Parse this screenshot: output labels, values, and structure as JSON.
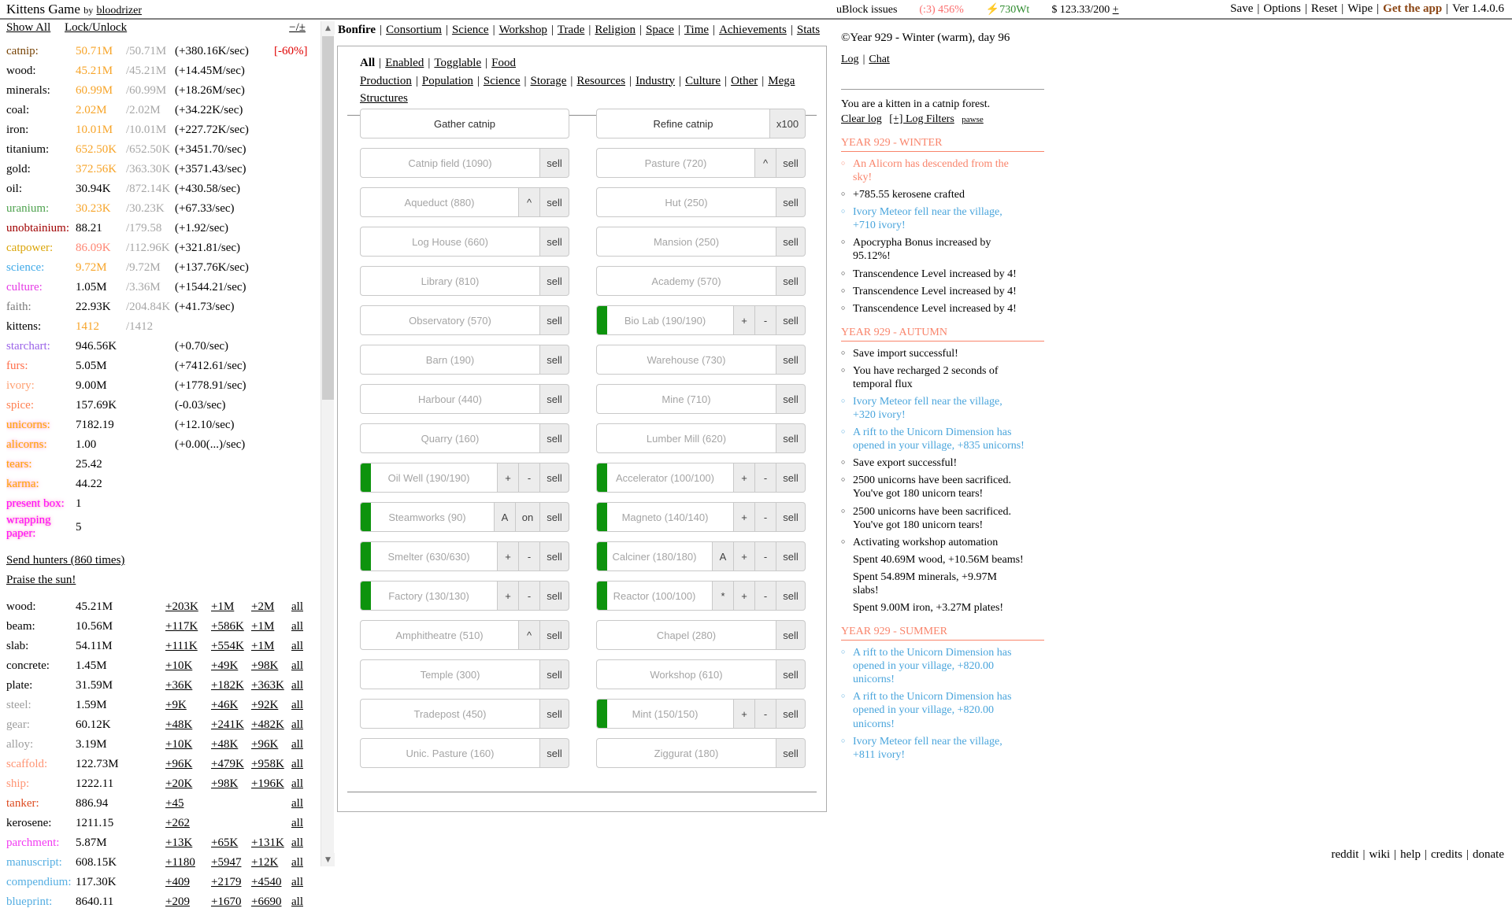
{
  "topbar": {
    "title": "Kittens Game",
    "by": "by",
    "author": "bloodrizer",
    "ublock": "uBlock issues",
    "happiness": "(:3) 456%",
    "energy": "⚡730Wt",
    "money": "$ 123.33/200",
    "money_plus": "+",
    "menu": [
      {
        "label": "Save"
      },
      {
        "label": "Options"
      },
      {
        "label": "Reset"
      },
      {
        "label": "Wipe"
      },
      {
        "label": "Get the app",
        "accent": true
      },
      {
        "label": "Ver 1.4.0.6"
      }
    ]
  },
  "colors": {
    "capped_value": "#F7A428",
    "max_gray": "#A6A6A6",
    "limited_value": "#FF8673",
    "penalty_red": "#E00000",
    "active_green": "#0D930D",
    "log_blue": "#4AA5DC",
    "log_salmon": "#F9846B",
    "app_accent": "#8B4513"
  },
  "left": {
    "show_all": "Show All",
    "lock_unlock": "Lock/Unlock",
    "collapse": "−/±",
    "resources": [
      {
        "name": "catnip:",
        "color": "#764204",
        "value": "50.71M",
        "value_color": "#F7A428",
        "max": "/50.71M",
        "rate": "(+380.16K/sec)",
        "mod": "[-60%]"
      },
      {
        "name": "wood:",
        "color": "#000000",
        "value": "45.21M",
        "value_color": "#F7A428",
        "max": "/45.21M",
        "rate": "(+14.45M/sec)",
        "mod": ""
      },
      {
        "name": "minerals:",
        "color": "#000000",
        "value": "60.99M",
        "value_color": "#F7A428",
        "max": "/60.99M",
        "rate": "(+18.26M/sec)",
        "mod": ""
      },
      {
        "name": "coal:",
        "color": "#000000",
        "value": "2.02M",
        "value_color": "#F7A428",
        "max": "/2.02M",
        "rate": "(+34.22K/sec)",
        "mod": ""
      },
      {
        "name": "iron:",
        "color": "#000000",
        "value": "10.01M",
        "value_color": "#F7A428",
        "max": "/10.01M",
        "rate": "(+227.72K/sec)",
        "mod": ""
      },
      {
        "name": "titanium:",
        "color": "#000000",
        "value": "652.50K",
        "value_color": "#F7A428",
        "max": "/652.50K",
        "rate": "(+3451.70/sec)",
        "mod": ""
      },
      {
        "name": "gold:",
        "color": "#000000",
        "value": "372.56K",
        "value_color": "#F7A428",
        "max": "/363.30K",
        "rate": "(+3571.43/sec)",
        "mod": ""
      },
      {
        "name": "oil:",
        "color": "#000000",
        "value": "30.94K",
        "value_color": "#000000",
        "max": "/872.14K",
        "rate": "(+430.58/sec)",
        "mod": ""
      },
      {
        "name": "uranium:",
        "color": "#4EA24E",
        "value": "30.23K",
        "value_color": "#F7A428",
        "max": "/30.23K",
        "rate": "(+67.33/sec)",
        "mod": ""
      },
      {
        "name": "unobtainium:",
        "color": "#A00000",
        "value": "88.21",
        "value_color": "#000000",
        "max": "/179.58",
        "rate": "(+1.92/sec)",
        "mod": ""
      },
      {
        "name": "catpower:",
        "color": "#DBA509",
        "value": "86.09K",
        "value_color": "#FF8673",
        "max": "/112.96K",
        "rate": "(+321.81/sec)",
        "mod": ""
      },
      {
        "name": "science:",
        "color": "#3FA9E8",
        "value": "9.72M",
        "value_color": "#F7A428",
        "max": "/9.72M",
        "rate": "(+137.76K/sec)",
        "mod": ""
      },
      {
        "name": "culture:",
        "color": "#E53BE5",
        "value": "1.05M",
        "value_color": "#000000",
        "max": "/3.36M",
        "rate": "(+1544.21/sec)",
        "mod": ""
      },
      {
        "name": "faith:",
        "color": "#7A7A7A",
        "value": "22.93K",
        "value_color": "#000000",
        "max": "/204.84K",
        "rate": "(+41.73/sec)",
        "mod": ""
      },
      {
        "name": "kittens:",
        "color": "#000000",
        "value": "1412",
        "value_color": "#F7A428",
        "max": "/1412",
        "rate": "",
        "mod": ""
      },
      {
        "name": "starchart:",
        "color": "#9A62E8",
        "value": "946.56K",
        "value_color": "#000000",
        "max": "",
        "rate": "(+0.70/sec)",
        "mod": ""
      },
      {
        "name": "furs:",
        "color": "#FF6E4A",
        "value": "5.05M",
        "value_color": "#000000",
        "max": "",
        "rate": "(+7412.61/sec)",
        "mod": ""
      },
      {
        "name": "ivory:",
        "color": "#FF9F71",
        "value": "9.00M",
        "value_color": "#000000",
        "max": "",
        "rate": "(+1778.91/sec)",
        "mod": ""
      },
      {
        "name": "spice:",
        "color": "#FF7F50",
        "value": "157.69K",
        "value_color": "#000000",
        "max": "",
        "rate": "(-0.03/sec)",
        "mod": ""
      },
      {
        "name": "unicorns:",
        "color": "#FFA500",
        "glow": true,
        "value": "7182.19",
        "value_color": "#000000",
        "max": "",
        "rate": "(+12.10/sec)",
        "mod": ""
      },
      {
        "name": "alicorns:",
        "color": "#FFA500",
        "glow": true,
        "value": "1.00",
        "value_color": "#000000",
        "max": "",
        "rate": "(+0.00(...)/sec)",
        "mod": ""
      },
      {
        "name": "tears:",
        "color": "#FFA500",
        "glow": true,
        "value": "25.42",
        "value_color": "#000000",
        "max": "",
        "rate": "",
        "mod": ""
      },
      {
        "name": "karma:",
        "color": "#FFA500",
        "glow": true,
        "value": "44.22",
        "value_color": "#000000",
        "max": "",
        "rate": "",
        "mod": ""
      },
      {
        "name": "present box:",
        "color": "#FF00FF",
        "glow": true,
        "value": "1",
        "value_color": "#000000",
        "max": "",
        "rate": "",
        "mod": ""
      },
      {
        "name": "wrapping paper:",
        "color": "#FF00FF",
        "glow": true,
        "value": "5",
        "value_color": "#000000",
        "max": "",
        "rate": "",
        "mod": ""
      }
    ],
    "actions": [
      "Send hunters (860 times)",
      "Praise the sun!"
    ],
    "crafts": [
      {
        "name": "wood:",
        "color": "#000000",
        "value": "45.21M",
        "links": [
          "+203K",
          "+1M",
          "+2M"
        ],
        "all": "all"
      },
      {
        "name": "beam:",
        "color": "#000000",
        "value": "10.56M",
        "links": [
          "+117K",
          "+586K",
          "+1M"
        ],
        "all": "all"
      },
      {
        "name": "slab:",
        "color": "#000000",
        "value": "54.11M",
        "links": [
          "+111K",
          "+554K",
          "+1M"
        ],
        "all": "all"
      },
      {
        "name": "concrete:",
        "color": "#000000",
        "value": "1.45M",
        "links": [
          "+10K",
          "+49K",
          "+98K"
        ],
        "all": "all"
      },
      {
        "name": "plate:",
        "color": "#000000",
        "value": "31.59M",
        "links": [
          "+36K",
          "+182K",
          "+363K"
        ],
        "all": "all"
      },
      {
        "name": "steel:",
        "color": "#9D9D9D",
        "value": "1.59M",
        "links": [
          "+9K",
          "+46K",
          "+92K"
        ],
        "all": "all"
      },
      {
        "name": "gear:",
        "color": "#9D9D9D",
        "value": "60.12K",
        "links": [
          "+48K",
          "+241K",
          "+482K"
        ],
        "all": "all"
      },
      {
        "name": "alloy:",
        "color": "#9D9D9D",
        "value": "3.19M",
        "links": [
          "+10K",
          "+48K",
          "+96K"
        ],
        "all": "all"
      },
      {
        "name": "scaffold:",
        "color": "#FF9473",
        "value": "122.73M",
        "links": [
          "+96K",
          "+479K",
          "+958K"
        ],
        "all": "all"
      },
      {
        "name": "ship:",
        "color": "#FF9473",
        "value": "1222.11",
        "links": [
          "+20K",
          "+98K",
          "+196K"
        ],
        "all": "all"
      },
      {
        "name": "tanker:",
        "color": "#DD4A1F",
        "value": "886.94",
        "links": [
          "+45"
        ],
        "all": "all"
      },
      {
        "name": "kerosene:",
        "color": "#000000",
        "value": "1211.15",
        "links": [
          "+262"
        ],
        "all": "all"
      },
      {
        "name": "parchment:",
        "color": "#F23AF2",
        "value": "5.87M",
        "links": [
          "+13K",
          "+65K",
          "+131K"
        ],
        "all": "all"
      },
      {
        "name": "manuscript:",
        "color": "#55AEE2",
        "value": "608.15K",
        "links": [
          "+1180",
          "+5947",
          "+12K"
        ],
        "all": "all"
      },
      {
        "name": "compendium:",
        "color": "#55AEE2",
        "value": "117.30K",
        "links": [
          "+409",
          "+2179",
          "+4540"
        ],
        "all": "all"
      },
      {
        "name": "blueprint:",
        "color": "#55AEE2",
        "value": "8640.11",
        "links": [
          "+209",
          "+1670",
          "+6690"
        ],
        "all": "all"
      }
    ]
  },
  "tabs": {
    "active": "Bonfire",
    "items": [
      "Bonfire",
      "Consortium",
      "Science",
      "Workshop",
      "Trade",
      "Religion",
      "Space",
      "Time",
      "Achievements",
      "Stats"
    ]
  },
  "subtabs": {
    "active": "All",
    "items": [
      "All",
      "Enabled",
      "Togglable",
      "Food Production",
      "Population",
      "Science",
      "Storage",
      "Resources",
      "Industry",
      "Culture",
      "Other",
      "Mega Structures"
    ]
  },
  "buildings": {
    "sell_label": "sell",
    "colL": [
      {
        "label": "Gather catnip",
        "enabled": true,
        "controls": [],
        "sell": false
      },
      {
        "label": "Catnip field (1090)",
        "controls": [],
        "sell": true
      },
      {
        "label": "Aqueduct (880)",
        "controls": [
          "^"
        ],
        "sell": true
      },
      {
        "label": "Log House (660)",
        "controls": [],
        "sell": true
      },
      {
        "label": "Library (810)",
        "controls": [],
        "sell": true
      },
      {
        "label": "Observatory (570)",
        "controls": [],
        "sell": true
      },
      {
        "label": "Barn (190)",
        "controls": [],
        "sell": true
      },
      {
        "label": "Harbour (440)",
        "controls": [],
        "sell": true
      },
      {
        "label": "Quarry (160)",
        "controls": [],
        "sell": true
      },
      {
        "label": "Oil Well (190/190)",
        "green": true,
        "controls": [
          "+",
          "-"
        ],
        "sell": true
      },
      {
        "label": "Steamworks (90)",
        "green": true,
        "controls": [
          "A",
          "on"
        ],
        "sell": true
      },
      {
        "label": "Smelter (630/630)",
        "green": true,
        "controls": [
          "+",
          "-"
        ],
        "sell": true
      },
      {
        "label": "Factory (130/130)",
        "green": true,
        "controls": [
          "+",
          "-"
        ],
        "sell": true
      },
      {
        "label": "Amphitheatre (510)",
        "controls": [
          "^"
        ],
        "sell": true
      },
      {
        "label": "Temple (300)",
        "controls": [],
        "sell": true
      },
      {
        "label": "Tradepost (450)",
        "controls": [],
        "sell": true
      },
      {
        "label": "Unic. Pasture (160)",
        "controls": [],
        "sell": true
      }
    ],
    "colR": [
      {
        "label": "Refine catnip",
        "enabled": true,
        "controls": [
          "x100"
        ],
        "sell": false
      },
      {
        "label": "Pasture (720)",
        "controls": [
          "^"
        ],
        "sell": true
      },
      {
        "label": "Hut (250)",
        "controls": [],
        "sell": true
      },
      {
        "label": "Mansion (250)",
        "controls": [],
        "sell": true
      },
      {
        "label": "Academy (570)",
        "controls": [],
        "sell": true
      },
      {
        "label": "Bio Lab (190/190)",
        "green": true,
        "controls": [
          "+",
          "-"
        ],
        "sell": true
      },
      {
        "label": "Warehouse (730)",
        "controls": [],
        "sell": true
      },
      {
        "label": "Mine (710)",
        "controls": [],
        "sell": true
      },
      {
        "label": "Lumber Mill (620)",
        "controls": [],
        "sell": true
      },
      {
        "label": "Accelerator (100/100)",
        "green": true,
        "controls": [
          "+",
          "-"
        ],
        "sell": true
      },
      {
        "label": "Magneto (140/140)",
        "green": true,
        "controls": [
          "+",
          "-"
        ],
        "sell": true
      },
      {
        "label": "Calciner (180/180)",
        "green": true,
        "controls": [
          "A",
          "+",
          "-"
        ],
        "sell": true
      },
      {
        "label": "Reactor (100/100)",
        "green": true,
        "controls": [
          "*",
          "+",
          "-"
        ],
        "sell": true
      },
      {
        "label": "Chapel (280)",
        "controls": [],
        "sell": true
      },
      {
        "label": "Workshop (610)",
        "controls": [],
        "sell": true
      },
      {
        "label": "Mint (150/150)",
        "green": true,
        "controls": [
          "+",
          "-"
        ],
        "sell": true
      },
      {
        "label": "Ziggurat (180)",
        "controls": [],
        "sell": true
      }
    ]
  },
  "log": {
    "calendar": "©Year 929 - Winter (warm), day 96",
    "log_link": "Log",
    "chat_link": "Chat",
    "intro": "You are a kitten in a catnip forest.",
    "clear": "Clear log",
    "filters": "[+] Log Filters",
    "pawse": "pawse",
    "sections": [
      {
        "title": "YEAR 929 - WINTER",
        "entries": [
          {
            "text": "An Alicorn has descended from the sky!",
            "color": "salmon"
          },
          {
            "text": "+785.55 kerosene crafted"
          },
          {
            "text": "Ivory Meteor fell near the village, +710 ivory!",
            "color": "blue"
          },
          {
            "text": "Apocrypha Bonus increased by 95.12%!"
          },
          {
            "text": "Transcendence Level increased by 4!"
          },
          {
            "text": "Transcendence Level increased by 4!"
          },
          {
            "text": "Transcendence Level increased by 4!"
          }
        ]
      },
      {
        "title": "YEAR 929 - AUTUMN",
        "entries": [
          {
            "text": "Save import successful!"
          },
          {
            "text": "You have recharged 2 seconds of temporal flux"
          },
          {
            "text": "Ivory Meteor fell near the village, +320 ivory!",
            "color": "blue"
          },
          {
            "text": "A rift to the Unicorn Dimension has opened in your village, +835 unicorns!",
            "color": "blue"
          },
          {
            "text": "Save export successful!"
          },
          {
            "text": "2500 unicorns have been sacrificed. You've got 180 unicorn tears!"
          },
          {
            "text": "2500 unicorns have been sacrificed. You've got 180 unicorn tears!"
          },
          {
            "text": "Activating workshop automation"
          },
          {
            "text": "Spent 40.69M wood, +10.56M beams!",
            "bullet": false
          },
          {
            "text": "Spent 54.89M minerals, +9.97M slabs!",
            "bullet": false
          },
          {
            "text": "Spent 9.00M iron, +3.27M plates!",
            "bullet": false
          }
        ]
      },
      {
        "title": "YEAR 929 - SUMMER",
        "entries": [
          {
            "text": "A rift to the Unicorn Dimension has opened in your village, +820.00 unicorns!",
            "color": "blue"
          },
          {
            "text": "A rift to the Unicorn Dimension has opened in your village, +820.00 unicorns!",
            "color": "blue"
          },
          {
            "text": "Ivory Meteor fell near the village, +811 ivory!",
            "color": "blue"
          }
        ]
      }
    ]
  },
  "footer": [
    "reddit",
    "wiki",
    "help",
    "credits",
    "donate"
  ]
}
